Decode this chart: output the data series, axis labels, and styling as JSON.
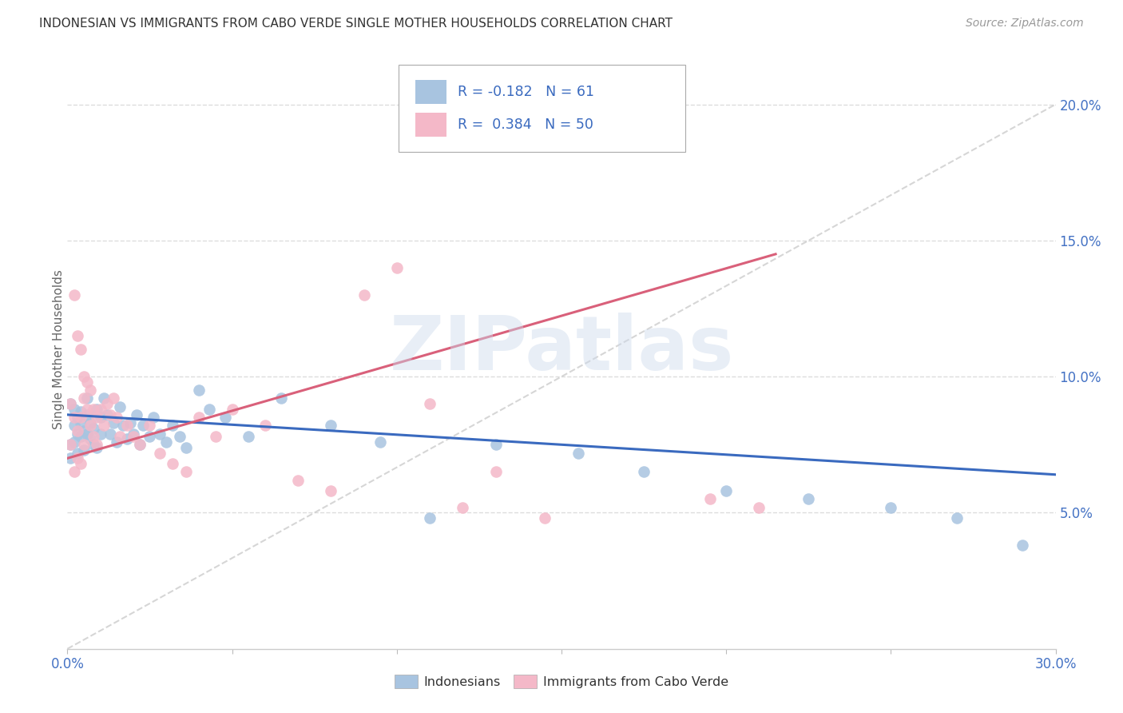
{
  "title": "INDONESIAN VS IMMIGRANTS FROM CABO VERDE SINGLE MOTHER HOUSEHOLDS CORRELATION CHART",
  "source": "Source: ZipAtlas.com",
  "ylabel": "Single Mother Households",
  "xlim": [
    0.0,
    0.3
  ],
  "ylim": [
    0.0,
    0.22
  ],
  "xtick_positions": [
    0.0,
    0.05,
    0.1,
    0.15,
    0.2,
    0.25,
    0.3
  ],
  "xtick_labels": [
    "0.0%",
    "",
    "",
    "",
    "",
    "",
    "30.0%"
  ],
  "ytick_positions": [
    0.05,
    0.1,
    0.15,
    0.2
  ],
  "ytick_labels": [
    "5.0%",
    "10.0%",
    "15.0%",
    "20.0%"
  ],
  "indonesian_color": "#a8c4e0",
  "cabo_verde_color": "#f4b8c8",
  "indonesian_line_color": "#3a6abf",
  "cabo_verde_line_color": "#d9607a",
  "dashed_line_color": "#cccccc",
  "watermark_color": "#cddaec",
  "watermark_text": "ZIPatlas",
  "legend_box_color": "#aaaaaa",
  "indonesian_label": "Indonesians",
  "cabo_verde_label": "Immigrants from Cabo Verde",
  "indonesian_R": "-0.182",
  "indonesian_N": "61",
  "cabo_verde_R": "0.384",
  "cabo_verde_N": "50",
  "ind_x": [
    0.001,
    0.001,
    0.001,
    0.002,
    0.002,
    0.002,
    0.003,
    0.003,
    0.003,
    0.004,
    0.004,
    0.004,
    0.005,
    0.005,
    0.006,
    0.006,
    0.006,
    0.007,
    0.007,
    0.008,
    0.008,
    0.009,
    0.009,
    0.01,
    0.01,
    0.011,
    0.012,
    0.013,
    0.014,
    0.015,
    0.016,
    0.017,
    0.018,
    0.019,
    0.02,
    0.021,
    0.022,
    0.023,
    0.025,
    0.026,
    0.028,
    0.03,
    0.032,
    0.034,
    0.036,
    0.04,
    0.043,
    0.048,
    0.055,
    0.065,
    0.08,
    0.095,
    0.11,
    0.13,
    0.155,
    0.175,
    0.2,
    0.225,
    0.25,
    0.27,
    0.29
  ],
  "ind_y": [
    0.09,
    0.075,
    0.07,
    0.088,
    0.082,
    0.076,
    0.085,
    0.079,
    0.072,
    0.083,
    0.078,
    0.087,
    0.08,
    0.073,
    0.086,
    0.079,
    0.092,
    0.077,
    0.083,
    0.075,
    0.081,
    0.088,
    0.074,
    0.085,
    0.079,
    0.092,
    0.086,
    0.079,
    0.083,
    0.076,
    0.089,
    0.082,
    0.077,
    0.083,
    0.079,
    0.086,
    0.075,
    0.082,
    0.078,
    0.085,
    0.079,
    0.076,
    0.082,
    0.078,
    0.074,
    0.095,
    0.088,
    0.085,
    0.078,
    0.092,
    0.082,
    0.076,
    0.048,
    0.075,
    0.072,
    0.065,
    0.058,
    0.055,
    0.052,
    0.048,
    0.038
  ],
  "cv_x": [
    0.001,
    0.001,
    0.002,
    0.002,
    0.002,
    0.003,
    0.003,
    0.003,
    0.004,
    0.004,
    0.004,
    0.005,
    0.005,
    0.005,
    0.006,
    0.006,
    0.007,
    0.007,
    0.008,
    0.008,
    0.009,
    0.009,
    0.01,
    0.011,
    0.012,
    0.013,
    0.014,
    0.015,
    0.016,
    0.018,
    0.02,
    0.022,
    0.025,
    0.028,
    0.032,
    0.036,
    0.04,
    0.045,
    0.05,
    0.06,
    0.07,
    0.08,
    0.09,
    0.1,
    0.11,
    0.12,
    0.13,
    0.145,
    0.195,
    0.21
  ],
  "cv_y": [
    0.09,
    0.075,
    0.13,
    0.085,
    0.065,
    0.115,
    0.08,
    0.07,
    0.11,
    0.085,
    0.068,
    0.1,
    0.092,
    0.075,
    0.098,
    0.088,
    0.095,
    0.082,
    0.088,
    0.078,
    0.085,
    0.075,
    0.088,
    0.082,
    0.09,
    0.086,
    0.092,
    0.085,
    0.078,
    0.082,
    0.078,
    0.075,
    0.082,
    0.072,
    0.068,
    0.065,
    0.085,
    0.078,
    0.088,
    0.082,
    0.062,
    0.058,
    0.13,
    0.14,
    0.09,
    0.052,
    0.065,
    0.048,
    0.055,
    0.052
  ],
  "ind_line_x": [
    0.0,
    0.3
  ],
  "ind_line_y": [
    0.086,
    0.064
  ],
  "cv_line_x": [
    0.0,
    0.215
  ],
  "cv_line_y": [
    0.07,
    0.145
  ]
}
